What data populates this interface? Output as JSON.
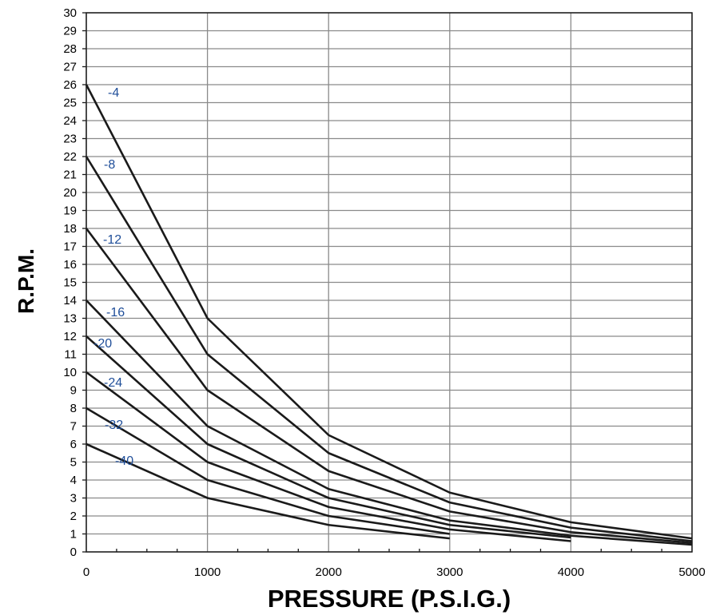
{
  "chart_data": {
    "type": "line",
    "xlabel": "PRESSURE (P.S.I.G.)",
    "ylabel": "R.P.M.",
    "xlim": [
      0,
      5000
    ],
    "ylim": [
      0,
      30
    ],
    "x_ticks": [
      0,
      1000,
      2000,
      3000,
      4000,
      5000
    ],
    "y_ticks": [
      0,
      1,
      2,
      3,
      4,
      5,
      6,
      7,
      8,
      9,
      10,
      11,
      12,
      13,
      14,
      15,
      16,
      17,
      18,
      19,
      20,
      21,
      22,
      23,
      24,
      25,
      26,
      27,
      28,
      29,
      30
    ],
    "grid": true,
    "series": [
      {
        "name": "-4",
        "x": [
          0,
          1000,
          2000,
          3000,
          4000,
          5000
        ],
        "y": [
          26,
          13,
          6.5,
          3.3,
          1.65,
          0.75
        ]
      },
      {
        "name": "-8",
        "x": [
          0,
          1000,
          2000,
          3000,
          4000,
          5000
        ],
        "y": [
          22,
          11,
          5.5,
          2.75,
          1.35,
          0.6
        ]
      },
      {
        "name": "-12",
        "x": [
          0,
          1000,
          2000,
          3000,
          4000,
          5000
        ],
        "y": [
          18,
          9,
          4.5,
          2.25,
          1.1,
          0.5
        ]
      },
      {
        "name": "-16",
        "x": [
          0,
          1000,
          2000,
          3000,
          4000,
          5000
        ],
        "y": [
          14,
          7,
          3.5,
          1.75,
          0.9,
          0.4
        ]
      },
      {
        "name": "-20",
        "x": [
          0,
          1000,
          2000,
          3000,
          4000
        ],
        "y": [
          12,
          6,
          3,
          1.5,
          0.8
        ]
      },
      {
        "name": "-24",
        "x": [
          0,
          1000,
          2000,
          3000,
          4000
        ],
        "y": [
          10,
          5,
          2.5,
          1.25,
          0.6
        ]
      },
      {
        "name": "-32",
        "x": [
          0,
          1000,
          2000,
          3000
        ],
        "y": [
          8,
          4,
          2,
          1
        ]
      },
      {
        "name": "-40",
        "x": [
          0,
          1000,
          2000,
          3000
        ],
        "y": [
          6,
          3,
          1.5,
          0.75
        ]
      }
    ]
  }
}
